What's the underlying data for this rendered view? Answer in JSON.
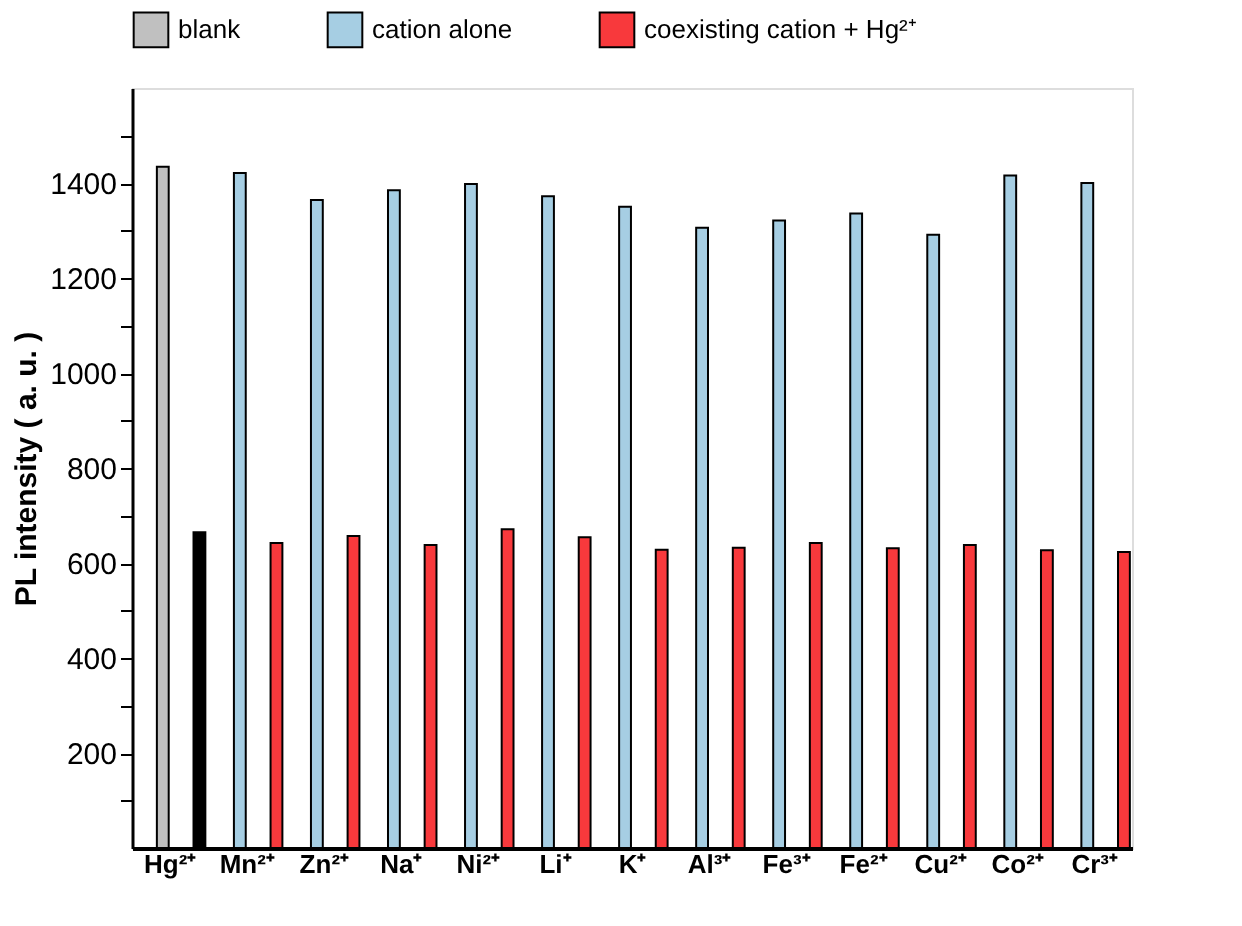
{
  "chart_data": {
    "type": "bar",
    "ylabel": "PL intensity ( a. u. )",
    "categories": [
      "Hg²⁺",
      "Mn²⁺",
      "Zn²⁺",
      "Na⁺",
      "Ni²⁺",
      "Li⁺",
      "K⁺",
      "Al³⁺",
      "Fe³⁺",
      "Fe²⁺",
      "Cu²⁺",
      "Co²⁺",
      "Cr³⁺"
    ],
    "series": [
      {
        "name": "blank",
        "color": "#c0c0c0",
        "values": [
          1434,
          null,
          null,
          null,
          null,
          null,
          null,
          null,
          null,
          null,
          null,
          null,
          null
        ]
      },
      {
        "color": "#000000",
        "values": [
          665,
          null,
          null,
          null,
          null,
          null,
          null,
          null,
          null,
          null,
          null,
          null,
          null
        ]
      },
      {
        "name": "cation alone",
        "color": "#a6cee3",
        "values": [
          null,
          1421,
          1364,
          1385,
          1398,
          1372,
          1350,
          1306,
          1321,
          1336,
          1291,
          1416,
          1400
        ]
      },
      {
        "name": "coexisting cation + Hg²⁺",
        "color": "#f8393c",
        "values": [
          null,
          642,
          657,
          638,
          671,
          654,
          628,
          632,
          642,
          631,
          638,
          627,
          623
        ]
      }
    ],
    "ylim": [
      0,
      1600
    ],
    "yticks": [
      {
        "value": 100,
        "label": null
      },
      200,
      {
        "value": 300,
        "label": null
      },
      400,
      {
        "value": 500,
        "label": null
      },
      600,
      {
        "value": 700,
        "label": null
      },
      800,
      {
        "value": 900,
        "label": null
      },
      1000,
      {
        "value": 1100,
        "label": null
      },
      1200,
      {
        "value": 1300,
        "label": null
      },
      1400,
      {
        "value": 1500,
        "label": null
      }
    ],
    "legend": "top",
    "grid": false
  }
}
